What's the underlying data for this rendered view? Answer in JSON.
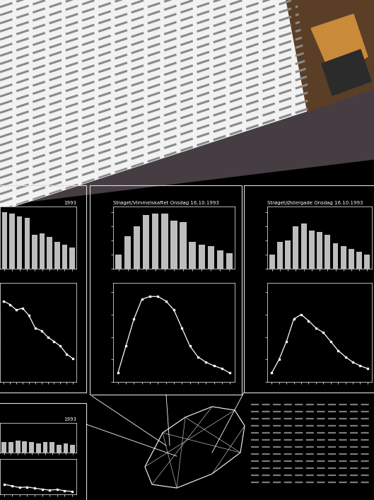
{
  "chart_data": [
    {
      "type": "bar",
      "title": "1993",
      "values": [
        100,
        97,
        92,
        90,
        60,
        62,
        56,
        48,
        42,
        38
      ],
      "color": "#bdbdbd",
      "ylim": [
        0,
        110
      ],
      "yticks": [
        0,
        25,
        50,
        75,
        100
      ],
      "tick_labels": false
    },
    {
      "type": "line",
      "values": [
        90,
        86,
        80,
        82,
        74,
        60,
        57,
        50,
        45,
        40,
        31,
        26
      ],
      "color": "#ffffff",
      "marker": "s",
      "ylim": [
        0,
        110
      ],
      "yticks": [
        0,
        25,
        50,
        75,
        100
      ],
      "tick_labels": false
    },
    {
      "type": "bar",
      "title": "Strøget/Vimmelskaftet Onsdag 16.10.1993",
      "values": [
        25,
        58,
        75,
        95,
        98,
        98,
        85,
        83,
        48,
        42,
        40,
        32,
        28
      ],
      "color": "#bdbdbd",
      "ylim": [
        0,
        110
      ],
      "yticks": [
        0,
        25,
        50,
        75,
        100
      ],
      "tick_labels": false
    },
    {
      "type": "line",
      "values": [
        10,
        40,
        70,
        92,
        95,
        95,
        90,
        80,
        60,
        40,
        28,
        22,
        18,
        15,
        10
      ],
      "color": "#ffffff",
      "marker": "s",
      "ylim": [
        0,
        110
      ],
      "yticks": [
        0,
        25,
        50,
        75,
        100
      ],
      "tick_labels": false
    },
    {
      "type": "bar",
      "title": "Strøget/Østergade Onsdag 16.10.1993",
      "values": [
        25,
        48,
        50,
        75,
        80,
        68,
        65,
        60,
        45,
        40,
        35,
        30,
        25
      ],
      "color": "#bdbdbd",
      "ylim": [
        0,
        110
      ],
      "yticks": [
        0,
        25,
        50,
        75,
        100
      ],
      "tick_labels": false
    },
    {
      "type": "line",
      "values": [
        10,
        25,
        45,
        70,
        75,
        68,
        60,
        55,
        45,
        35,
        28,
        22,
        18,
        15
      ],
      "color": "#ffffff",
      "marker": "s",
      "ylim": [
        0,
        110
      ],
      "yticks": [
        0,
        25,
        50,
        75,
        100
      ],
      "tick_labels": false
    },
    {
      "type": "bar",
      "title": "1993",
      "values": [
        40,
        38,
        45,
        42,
        40,
        35,
        38,
        40,
        30,
        35,
        28
      ],
      "color": "#bdbdbd",
      "ylim": [
        0,
        110
      ],
      "yticks": [
        0,
        50,
        100
      ],
      "tick_labels": false
    },
    {
      "type": "line",
      "values": [
        30,
        25,
        20,
        22,
        18,
        15,
        12,
        14,
        10,
        8
      ],
      "color": "#ffffff",
      "marker": "s",
      "ylim": [
        0,
        110
      ],
      "yticks": [
        0,
        50,
        100
      ],
      "tick_labels": false
    }
  ]
}
